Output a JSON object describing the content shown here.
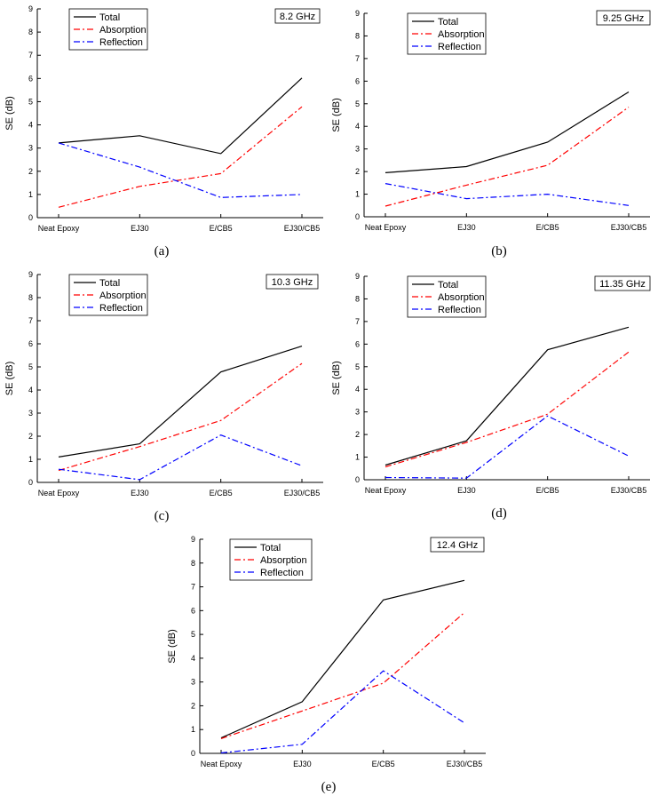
{
  "chart_data": [
    {
      "type": "line",
      "panel": "a",
      "caption": "(a)",
      "frequency": "8.2 GHz",
      "categories": [
        "Neat Epoxy",
        "EJ30",
        "E/CB5",
        "EJ30/CB5"
      ],
      "ylabel": "SE (dB)",
      "ylim": [
        0,
        9
      ],
      "yticks": [
        "0",
        "1",
        "2",
        "3",
        "4",
        "5",
        "6",
        "7",
        "8",
        "9"
      ],
      "legend_position": "top-left",
      "series": [
        {
          "name": "Total",
          "color": "#000000",
          "dash": "solid",
          "values": [
            3.22,
            3.53,
            2.76,
            6.02
          ]
        },
        {
          "name": "Absorption",
          "color": "#ff0000",
          "dash": "dashdot",
          "values": [
            0.45,
            1.35,
            1.9,
            4.78
          ]
        },
        {
          "name": "Reflection",
          "color": "#0000ff",
          "dash": "dashdot",
          "values": [
            3.22,
            2.18,
            0.87,
            1.0
          ]
        }
      ]
    },
    {
      "type": "line",
      "panel": "b",
      "caption": "(b)",
      "frequency": "9.25 GHz",
      "categories": [
        "Neat Epoxy",
        "EJ30",
        "E/CB5",
        "EJ30/CB5"
      ],
      "ylabel": "SE (dB)",
      "ylim": [
        0,
        9
      ],
      "yticks": [
        "0",
        "1",
        "2",
        "3",
        "4",
        "5",
        "6",
        "7",
        "8",
        "9"
      ],
      "legend_position": "top-left",
      "series": [
        {
          "name": "Total",
          "color": "#000000",
          "dash": "solid",
          "values": [
            1.95,
            2.22,
            3.3,
            5.52
          ]
        },
        {
          "name": "Absorption",
          "color": "#ff0000",
          "dash": "dashdot",
          "values": [
            0.47,
            1.4,
            2.28,
            4.85
          ]
        },
        {
          "name": "Reflection",
          "color": "#0000ff",
          "dash": "dashdot",
          "values": [
            1.47,
            0.8,
            1.0,
            0.5
          ]
        }
      ]
    },
    {
      "type": "line",
      "panel": "c",
      "caption": "(c)",
      "frequency": "10.3 GHz",
      "categories": [
        "Neat Epoxy",
        "EJ30",
        "E/CB5",
        "EJ30/CB5"
      ],
      "ylabel": "SE (dB)",
      "ylim": [
        0,
        9
      ],
      "yticks": [
        "0",
        "1",
        "2",
        "3",
        "4",
        "5",
        "6",
        "7",
        "8",
        "9"
      ],
      "legend_position": "top-left",
      "series": [
        {
          "name": "Total",
          "color": "#000000",
          "dash": "solid",
          "values": [
            1.1,
            1.67,
            4.78,
            5.9
          ]
        },
        {
          "name": "Absorption",
          "color": "#ff0000",
          "dash": "dashdot",
          "values": [
            0.52,
            1.55,
            2.68,
            5.15
          ]
        },
        {
          "name": "Reflection",
          "color": "#0000ff",
          "dash": "dashdot",
          "values": [
            0.57,
            0.12,
            2.05,
            0.72
          ]
        }
      ]
    },
    {
      "type": "line",
      "panel": "d",
      "caption": "(d)",
      "frequency": "11.35 GHz",
      "categories": [
        "Neat Epoxy",
        "EJ30",
        "E/CB5",
        "EJ30/CB5"
      ],
      "ylabel": "SE (dB)",
      "ylim": [
        0,
        9
      ],
      "yticks": [
        "0",
        "1",
        "2",
        "3",
        "4",
        "5",
        "6",
        "7",
        "8",
        "9"
      ],
      "legend_position": "top-left",
      "series": [
        {
          "name": "Total",
          "color": "#000000",
          "dash": "solid",
          "values": [
            0.65,
            1.72,
            5.75,
            6.75
          ]
        },
        {
          "name": "Absorption",
          "color": "#ff0000",
          "dash": "dashdot",
          "values": [
            0.57,
            1.65,
            2.9,
            5.65
          ]
        },
        {
          "name": "Reflection",
          "color": "#0000ff",
          "dash": "dashdot",
          "values": [
            0.1,
            0.07,
            2.82,
            1.05
          ]
        }
      ]
    },
    {
      "type": "line",
      "panel": "e",
      "caption": "(e)",
      "frequency": "12.4 GHz",
      "categories": [
        "Neat Epoxy",
        "EJ30",
        "E/CB5",
        "EJ30/CB5"
      ],
      "ylabel": "SE (dB)",
      "ylim": [
        0,
        9
      ],
      "yticks": [
        "0",
        "1",
        "2",
        "3",
        "4",
        "5",
        "6",
        "7",
        "8",
        "9"
      ],
      "legend_position": "top-left",
      "series": [
        {
          "name": "Total",
          "color": "#000000",
          "dash": "solid",
          "values": [
            0.65,
            2.17,
            6.45,
            7.27
          ]
        },
        {
          "name": "Absorption",
          "color": "#ff0000",
          "dash": "dashdot",
          "values": [
            0.62,
            1.78,
            2.95,
            5.92
          ]
        },
        {
          "name": "Reflection",
          "color": "#0000ff",
          "dash": "dashdot",
          "values": [
            0.02,
            0.38,
            3.47,
            1.28
          ]
        }
      ]
    }
  ]
}
